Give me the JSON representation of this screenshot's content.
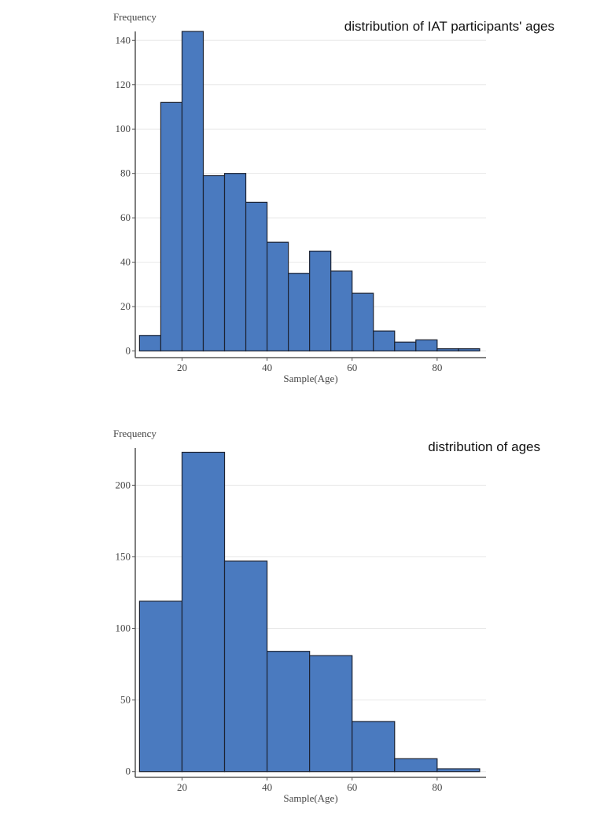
{
  "chart_data": [
    {
      "type": "histogram",
      "title": "distribution of IAT participants' ages",
      "x_label": "Sample(Age)",
      "y_label": "Frequency",
      "bins": [
        10,
        15,
        20,
        25,
        30,
        35,
        40,
        45,
        50,
        55,
        60,
        65,
        70,
        75,
        80,
        85,
        90
      ],
      "values": [
        7,
        112,
        144,
        79,
        80,
        67,
        49,
        35,
        45,
        36,
        26,
        9,
        4,
        5,
        1,
        1
      ],
      "color": "#4a7abf",
      "xlim": [
        9,
        91.5
      ],
      "ylim": [
        -3,
        144
      ],
      "xticks": [
        20,
        40,
        60,
        80
      ],
      "yticks": [
        0,
        20,
        40,
        60,
        80,
        100,
        120,
        140
      ],
      "grid": true
    },
    {
      "type": "histogram",
      "title": "distribution of ages",
      "x_label": "Sample(Age)",
      "y_label": "Frequency",
      "bins": [
        10,
        20,
        30,
        40,
        50,
        60,
        70,
        80,
        90
      ],
      "values": [
        119,
        223,
        147,
        84,
        81,
        35,
        9,
        2
      ],
      "color": "#4a7abf",
      "xlim": [
        9,
        91.5
      ],
      "ylim": [
        -4,
        226
      ],
      "xticks": [
        20,
        40,
        60,
        80
      ],
      "yticks": [
        0,
        50,
        100,
        150,
        200
      ],
      "grid": true
    }
  ]
}
